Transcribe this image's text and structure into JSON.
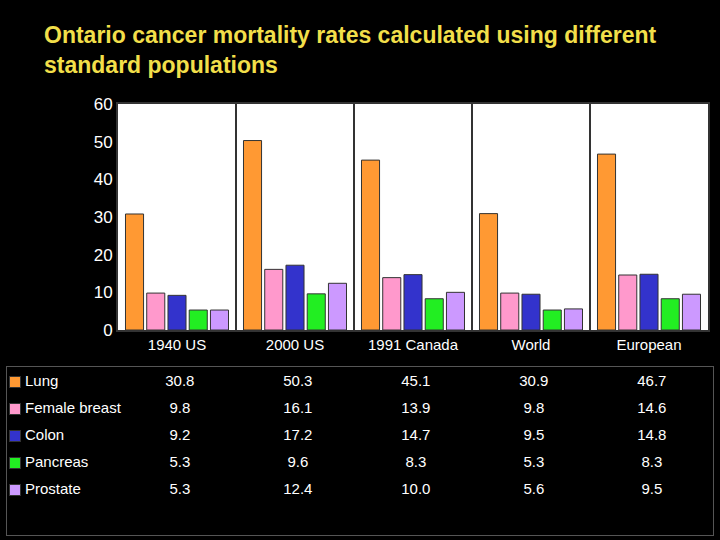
{
  "chart_data": {
    "type": "bar",
    "title": "Ontario cancer mortality rates calculated using different standard populations",
    "categories": [
      "1940 US",
      "2000 US",
      "1991 Canada",
      "World",
      "European"
    ],
    "series": [
      {
        "name": "Lung",
        "color": "#ff9933",
        "values": [
          30.8,
          50.3,
          45.1,
          30.9,
          46.7
        ],
        "value_labels": [
          "30.8",
          "50.3",
          "45.1",
          "30.9",
          "46.7"
        ]
      },
      {
        "name": "Female breast",
        "color": "#ff99cc",
        "values": [
          9.8,
          16.1,
          13.9,
          9.8,
          14.6
        ],
        "value_labels": [
          "9.8",
          "16.1",
          "13.9",
          "9.8",
          "14.6"
        ]
      },
      {
        "name": "Colon",
        "color": "#3333cc",
        "values": [
          9.2,
          17.2,
          14.7,
          9.5,
          14.8
        ],
        "value_labels": [
          "9.2",
          "17.2",
          "14.7",
          "9.5",
          "14.8"
        ]
      },
      {
        "name": "Pancreas",
        "color": "#22ee22",
        "values": [
          5.3,
          9.6,
          8.3,
          5.3,
          8.3
        ],
        "value_labels": [
          "5.3",
          "9.6",
          "8.3",
          "5.3",
          "8.3"
        ]
      },
      {
        "name": "Prostate",
        "color": "#cc99ff",
        "values": [
          5.3,
          12.4,
          10.0,
          5.6,
          9.5
        ],
        "value_labels": [
          "5.3",
          "12.4",
          "10.0",
          "5.6",
          "9.5"
        ]
      }
    ],
    "ylim": [
      0,
      60
    ],
    "yticks": [
      0,
      10,
      20,
      30,
      40,
      50,
      60
    ],
    "grid": false
  }
}
